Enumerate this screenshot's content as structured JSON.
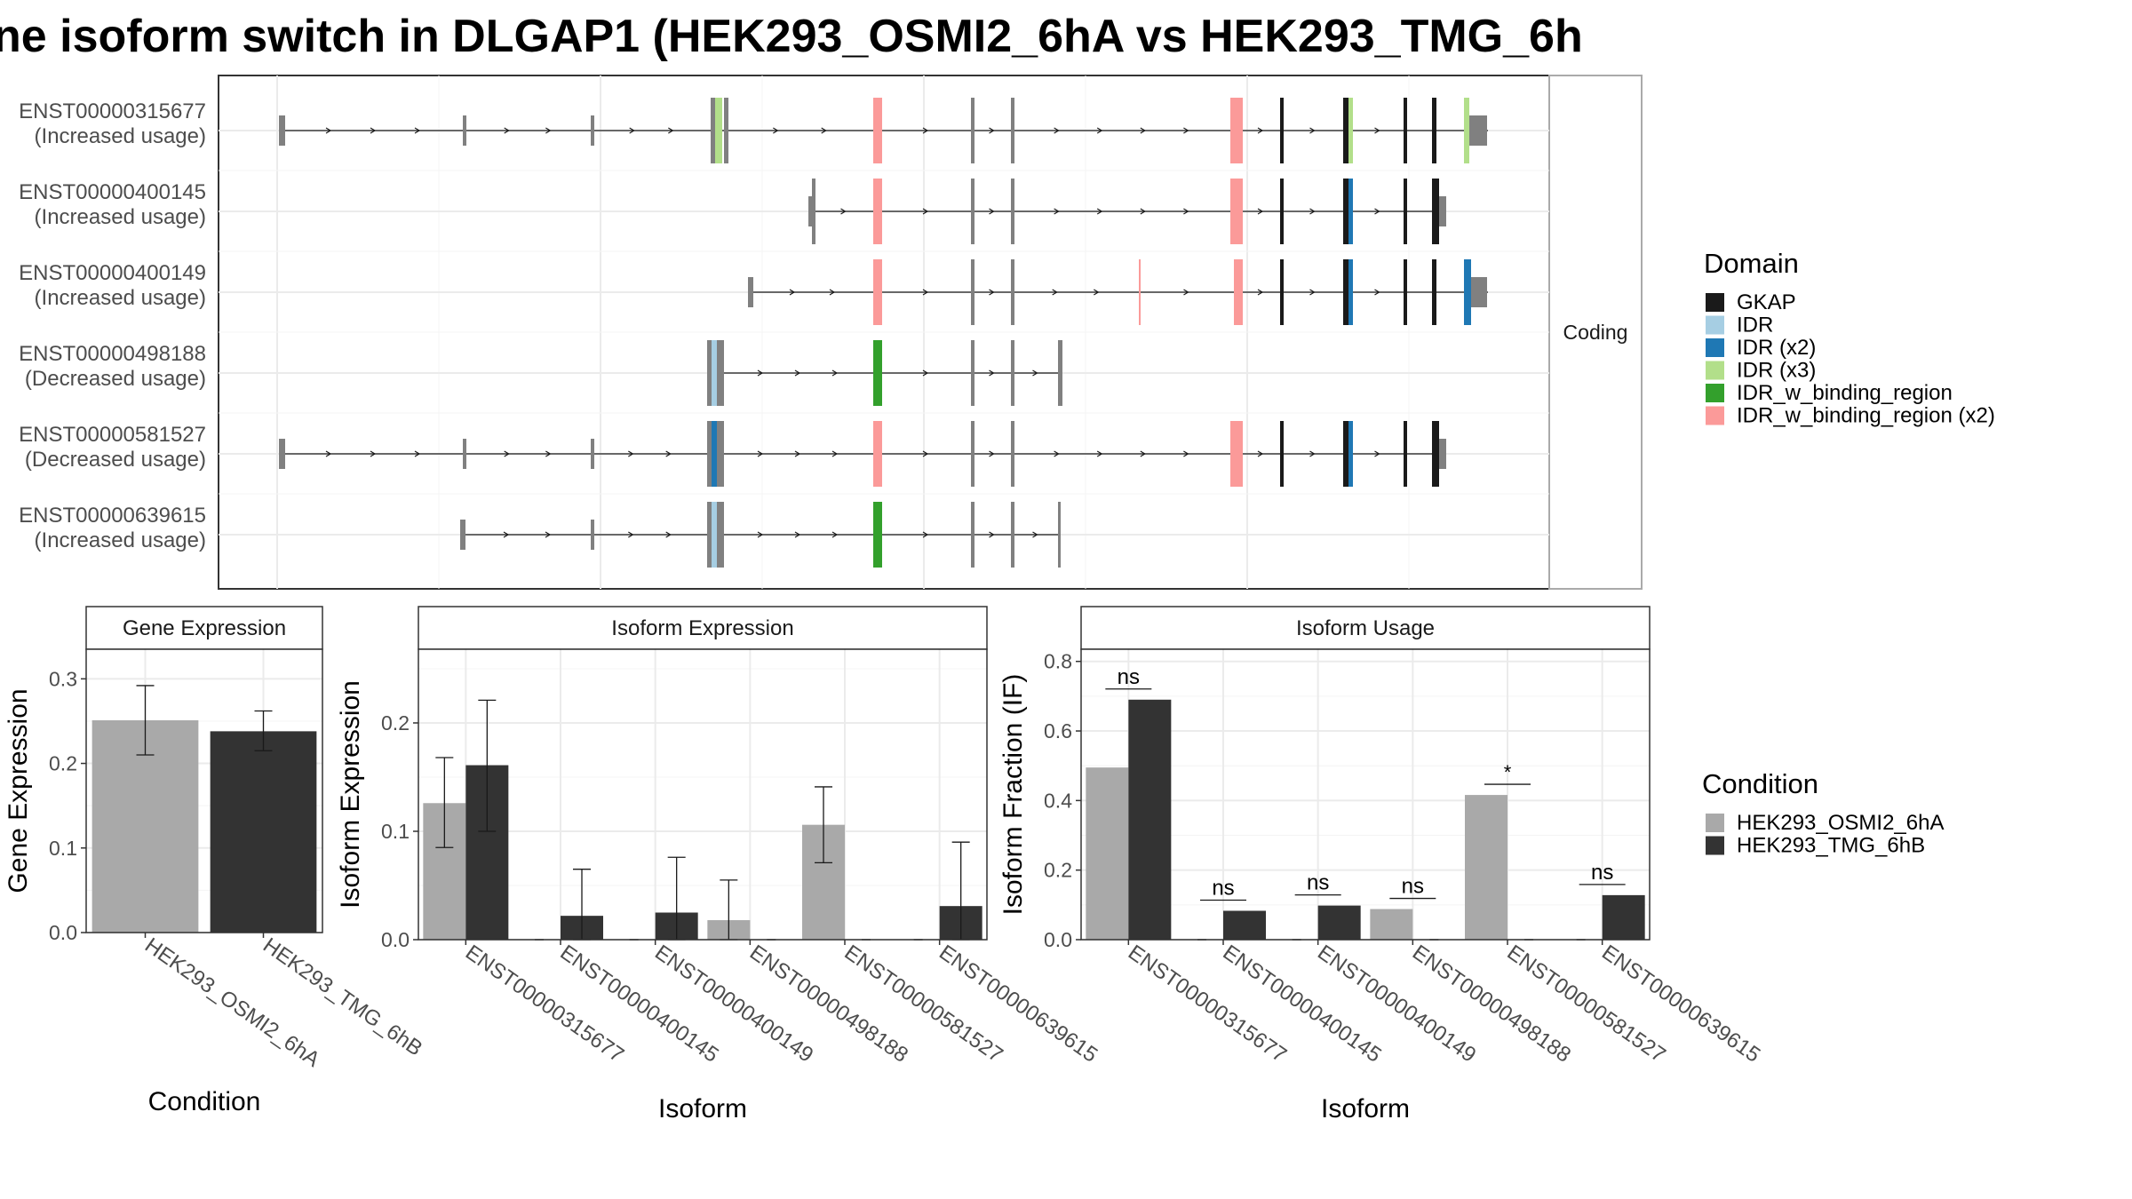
{
  "title": "ne isoform switch in DLGAP1 (HEK293_OSMI2_6hA vs HEK293_TMG_6h",
  "transcript_panel": {
    "strip_label": "Coding",
    "transcripts": [
      {
        "id": "ENST00000315677",
        "usage": "(Increased usage)"
      },
      {
        "id": "ENST00000400145",
        "usage": "(Increased usage)"
      },
      {
        "id": "ENST00000400149",
        "usage": "(Increased usage)"
      },
      {
        "id": "ENST00000498188",
        "usage": "(Decreased usage)"
      },
      {
        "id": "ENST00000581527",
        "usage": "(Decreased usage)"
      },
      {
        "id": "ENST00000639615",
        "usage": "(Increased usage)"
      }
    ]
  },
  "domain_legend": {
    "title": "Domain",
    "items": [
      {
        "label": "GKAP",
        "color": "#1a1a1a"
      },
      {
        "label": "IDR",
        "color": "#a6cee3"
      },
      {
        "label": "IDR (x2)",
        "color": "#1f78b4"
      },
      {
        "label": "IDR (x3)",
        "color": "#b2df8a"
      },
      {
        "label": "IDR_w_binding_region",
        "color": "#33a02c"
      },
      {
        "label": "IDR_w_binding_region (x2)",
        "color": "#fb9a99"
      }
    ]
  },
  "condition_legend": {
    "title": "Condition",
    "items": [
      {
        "label": "HEK293_OSMI2_6hA",
        "color": "#a9a9a9"
      },
      {
        "label": "HEK293_TMG_6hB",
        "color": "#333333"
      }
    ]
  },
  "chart_data": [
    {
      "type": "bar",
      "title": "Gene Expression",
      "xlabel": "Condition",
      "ylabel": "Gene Expression",
      "categories": [
        "HEK293_OSMI2_6hA",
        "HEK293_TMG_6hB"
      ],
      "values": [
        0.251,
        0.238
      ],
      "error_low": [
        0.21,
        0.215
      ],
      "error_high": [
        0.292,
        0.262
      ],
      "ylim": [
        0,
        0.335
      ],
      "yticks": [
        0.0,
        0.1,
        0.2,
        0.3
      ],
      "ytick_labels": [
        "0.0",
        "0.1",
        "0.2",
        "0.3"
      ]
    },
    {
      "type": "bar",
      "title": "Isoform Expression",
      "xlabel": "Isoform",
      "ylabel": "Isoform Expression",
      "categories": [
        "ENST00000315677",
        "ENST00000400145",
        "ENST00000400149",
        "ENST00000498188",
        "ENST00000581527",
        "ENST00000639615"
      ],
      "series": [
        {
          "values": [
            0.126,
            0.0,
            0.0,
            0.018,
            0.106,
            0.0
          ],
          "error_low": [
            0.085,
            0.0,
            0.0,
            0.0,
            0.071,
            0.0
          ],
          "error_high": [
            0.168,
            0.0,
            0.0,
            0.055,
            0.141,
            0.0
          ]
        },
        {
          "values": [
            0.161,
            0.022,
            0.025,
            0.0,
            0.0,
            0.031
          ],
          "error_low": [
            0.1,
            0.0,
            0.0,
            0.0,
            0.0,
            0.0
          ],
          "error_high": [
            0.221,
            0.065,
            0.076,
            0.0,
            0.0,
            0.09
          ]
        }
      ],
      "ylim": [
        0,
        0.268
      ],
      "yticks": [
        0.0,
        0.1,
        0.2
      ],
      "ytick_labels": [
        "0.0",
        "0.1",
        "0.2"
      ]
    },
    {
      "type": "bar",
      "title": "Isoform Usage",
      "xlabel": "Isoform",
      "ylabel": "Isoform Fraction (IF)",
      "categories": [
        "ENST00000315677",
        "ENST00000400145",
        "ENST00000400149",
        "ENST00000498188",
        "ENST00000581527",
        "ENST00000639615"
      ],
      "series": [
        {
          "values": [
            0.495,
            0.0,
            0.0,
            0.088,
            0.416,
            0.0
          ]
        },
        {
          "values": [
            0.69,
            0.083,
            0.098,
            0.0,
            0.0,
            0.128
          ]
        }
      ],
      "significance": [
        "ns",
        "ns",
        "ns",
        "ns",
        "*",
        "ns"
      ],
      "ylim": [
        0,
        0.835
      ],
      "yticks": [
        0.0,
        0.2,
        0.4,
        0.6,
        0.8
      ],
      "ytick_labels": [
        "0.0",
        "0.2",
        "0.4",
        "0.6",
        "0.8"
      ]
    }
  ]
}
